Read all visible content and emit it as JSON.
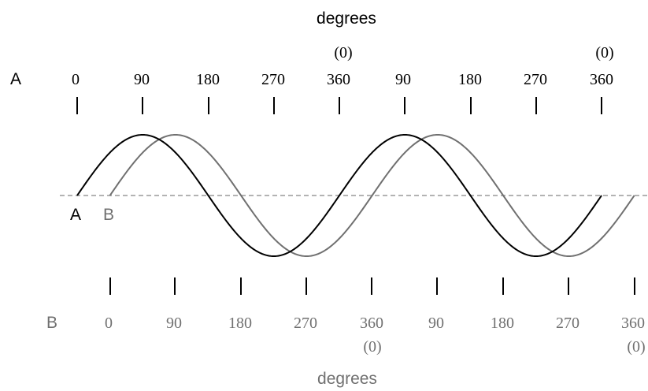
{
  "top_axis": {
    "title": "degrees",
    "row_label": "A",
    "ticks": [
      "0",
      "90",
      "180",
      "270",
      "360",
      "90",
      "180",
      "270",
      "360"
    ],
    "zero_marks": [
      "(0)",
      "(0)"
    ]
  },
  "bottom_axis": {
    "title": "degrees",
    "row_label": "B",
    "ticks": [
      "0",
      "90",
      "180",
      "270",
      "360",
      "90",
      "180",
      "270",
      "360"
    ],
    "zero_marks": [
      "(0)",
      "(0)"
    ]
  },
  "waves": {
    "a": {
      "label": "A",
      "color": "#000000",
      "cycles": 2,
      "start_deg": 0
    },
    "b": {
      "label": "B",
      "color": "#707070",
      "cycles": 2,
      "start_deg": 0,
      "lag_deg": 45
    }
  },
  "axis_line": {
    "color": "#9a9a9a",
    "style": "dashed"
  }
}
